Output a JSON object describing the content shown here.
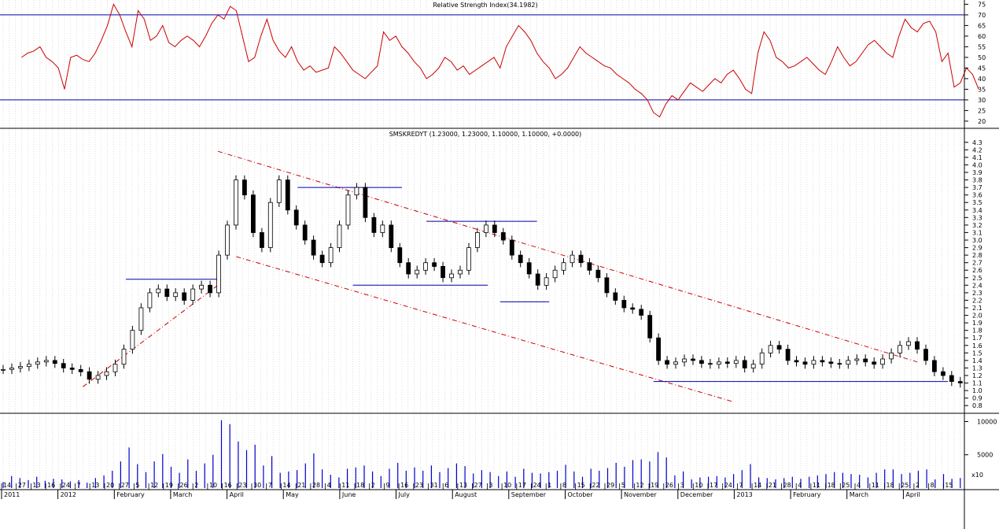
{
  "chart_data": [
    {
      "type": "line",
      "title": "Relative Strength Index(34.1982)",
      "yticks": [
        20,
        25,
        30,
        35,
        40,
        45,
        50,
        55,
        60,
        65,
        70,
        75
      ],
      "ylim": [
        17,
        77
      ],
      "reference_lines": [
        30,
        70
      ],
      "colors": {
        "rsi": "#cc0000",
        "reference": "#0000aa"
      },
      "series": [
        {
          "name": "",
          "x_start_week": 3,
          "values": [
            50,
            52,
            53,
            55,
            50,
            48,
            45,
            35,
            50,
            51,
            49,
            48,
            52,
            58,
            65,
            75,
            70,
            62,
            55,
            72,
            68,
            58,
            60,
            65,
            57,
            55,
            58,
            60,
            58,
            55,
            60,
            66,
            70,
            68,
            74,
            72,
            60,
            48,
            50,
            60,
            68,
            58,
            53,
            50,
            55,
            48,
            44,
            46,
            43,
            44,
            45,
            55,
            52,
            48,
            44,
            42,
            40,
            43,
            46,
            62,
            58,
            60,
            55,
            52,
            48,
            45,
            40,
            42,
            45,
            50,
            48,
            44,
            46,
            42,
            44,
            46,
            48,
            50,
            45,
            55,
            60,
            65,
            62,
            58,
            52,
            48,
            45,
            40,
            42,
            45,
            50,
            55,
            52,
            50,
            48,
            46,
            45,
            42,
            40,
            38,
            35,
            33,
            30,
            24,
            22,
            28,
            32,
            30,
            34,
            38,
            36,
            34,
            37,
            40,
            38,
            42,
            44,
            40,
            35,
            33,
            52,
            62,
            58,
            50,
            48,
            45,
            46,
            48,
            50,
            47,
            44,
            42,
            48,
            55,
            50,
            46,
            48,
            52,
            56,
            58,
            55,
            52,
            50,
            60,
            68,
            64,
            62,
            66,
            67,
            62,
            48,
            52,
            36,
            38,
            45,
            42,
            35
          ]
        }
      ]
    },
    {
      "type": "candlestick",
      "title": "SMSKREDYT (1.23000, 1.23000, 1.10000, 1.10000, +0.0000)",
      "yticks": [
        0.8,
        0.9,
        1.0,
        1.1,
        1.2,
        1.3,
        1.4,
        1.5,
        1.6,
        1.7,
        1.8,
        1.9,
        2.0,
        2.1,
        2.2,
        2.3,
        2.4,
        2.5,
        2.6,
        2.7,
        2.8,
        2.9,
        3.0,
        3.1,
        3.2,
        3.3,
        3.4,
        3.5,
        3.6,
        3.7,
        3.8,
        3.9,
        4.0,
        4.1,
        4.2,
        4.3
      ],
      "ylim": [
        0.75,
        4.35
      ],
      "colors": {
        "candle": "#000000",
        "trend": "#cc0000",
        "level": "#0000aa"
      },
      "close": [
        1.28,
        1.3,
        1.32,
        1.35,
        1.38,
        1.4,
        1.36,
        1.3,
        1.28,
        1.25,
        1.15,
        1.2,
        1.25,
        1.35,
        1.55,
        1.8,
        2.1,
        2.3,
        2.35,
        2.25,
        2.3,
        2.2,
        2.35,
        2.4,
        2.3,
        2.8,
        3.2,
        3.8,
        3.6,
        3.1,
        2.9,
        3.5,
        3.8,
        3.4,
        3.2,
        3.0,
        2.8,
        2.7,
        2.9,
        3.2,
        3.6,
        3.7,
        3.3,
        3.1,
        3.2,
        2.9,
        2.7,
        2.55,
        2.6,
        2.7,
        2.65,
        2.5,
        2.55,
        2.6,
        2.9,
        3.1,
        3.2,
        3.1,
        3.0,
        2.8,
        2.7,
        2.55,
        2.4,
        2.5,
        2.6,
        2.7,
        2.8,
        2.7,
        2.6,
        2.5,
        2.3,
        2.2,
        2.1,
        2.08,
        2.0,
        1.7,
        1.4,
        1.35,
        1.38,
        1.42,
        1.4,
        1.36,
        1.35,
        1.38,
        1.36,
        1.4,
        1.3,
        1.35,
        1.5,
        1.6,
        1.55,
        1.4,
        1.38,
        1.35,
        1.4,
        1.38,
        1.36,
        1.35,
        1.4,
        1.42,
        1.38,
        1.35,
        1.42,
        1.5,
        1.6,
        1.65,
        1.55,
        1.4,
        1.25,
        1.2,
        1.12,
        1.1
      ],
      "levels": [
        {
          "from": 20,
          "to": 35,
          "y": 2.48
        },
        {
          "from": 48,
          "to": 65,
          "y": 3.7
        },
        {
          "from": 57,
          "to": 79,
          "y": 2.4
        },
        {
          "from": 69,
          "to": 87,
          "y": 3.25
        },
        {
          "from": 81,
          "to": 89,
          "y": 2.18
        },
        {
          "from": 106,
          "to": 154,
          "y": 1.12
        }
      ],
      "trendlines": [
        {
          "x": [
            13,
            35
          ],
          "y": [
            1.05,
            2.4
          ]
        },
        {
          "x": [
            35,
            149
          ],
          "y": [
            4.18,
            1.38
          ]
        },
        {
          "x": [
            38,
            119
          ],
          "y": [
            2.78,
            0.85
          ]
        }
      ]
    },
    {
      "type": "bar",
      "title": "",
      "yticks": [
        5000,
        10000
      ],
      "ylim": [
        0,
        11000
      ],
      "units_label": "x10",
      "color": "#0000cc",
      "values": [
        900,
        1800,
        1500,
        1200,
        1700,
        1100,
        1400,
        1300,
        1000,
        1200,
        800,
        1500,
        1900,
        2600,
        4000,
        6100,
        3600,
        2400,
        4000,
        5100,
        3200,
        2300,
        4300,
        2600,
        3700,
        5000,
        10200,
        9600,
        7000,
        5700,
        6500,
        3400,
        4800,
        2300,
        2500,
        2700,
        3700,
        5200,
        2800,
        2000,
        1600,
        2900,
        3100,
        3400,
        2500,
        1800,
        2900,
        3800,
        2600,
        3100,
        2600,
        3400,
        2400,
        3000,
        3700,
        3300,
        2200,
        2700,
        2400,
        1800,
        2500,
        1700,
        2900,
        2300,
        2200,
        2400,
        2600,
        3500,
        2500,
        1700,
        2900,
        2600,
        3000,
        3800,
        3200,
        4200,
        4300,
        4000,
        5400,
        4600,
        1900,
        2500,
        1300,
        1600,
        1700,
        1800,
        1600,
        2100,
        2700,
        3600,
        1600,
        1500,
        1300,
        1500,
        1700,
        1400,
        1700,
        1900,
        2100,
        2400,
        2300,
        2100,
        2000,
        1600,
        2300,
        2800,
        2800,
        2100,
        2300,
        2600,
        2800,
        1300,
        2100,
        1400,
        1500
      ]
    }
  ],
  "x_axis": {
    "day_ticks": [
      "14",
      "27",
      "13",
      "16",
      "24",
      "7",
      "13",
      "20",
      "27",
      "5",
      "12",
      "19",
      "26",
      "2",
      "10",
      "16",
      "23",
      "30",
      "7",
      "14",
      "21",
      "28",
      "4",
      "11",
      "18",
      "2",
      "9",
      "16",
      "23",
      "31",
      "6",
      "13",
      "27",
      "3",
      "10",
      "17",
      "24",
      "1",
      "8",
      "15",
      "22",
      "29",
      "5",
      "12",
      "19",
      "26",
      "3",
      "10",
      "17",
      "24",
      "7",
      "14",
      "21",
      "28",
      "4",
      "11",
      "18",
      "25",
      "4",
      "11",
      "18",
      "25",
      "2",
      "8",
      "15"
    ],
    "month_labels": [
      "2011",
      "2012",
      "February",
      "March",
      "April",
      "May",
      "June",
      "July",
      "August",
      "September",
      "October",
      "November",
      "December",
      "2013",
      "February",
      "March",
      "April"
    ]
  }
}
